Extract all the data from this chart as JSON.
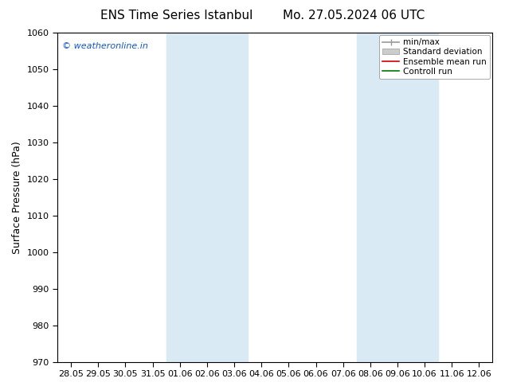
{
  "title_left": "ENS Time Series Istanbul",
  "title_right": "Mo. 27.05.2024 06 UTC",
  "ylabel": "Surface Pressure (hPa)",
  "ylim": [
    970,
    1060
  ],
  "yticks": [
    970,
    980,
    990,
    1000,
    1010,
    1020,
    1030,
    1040,
    1050,
    1060
  ],
  "x_labels": [
    "28.05",
    "29.05",
    "30.05",
    "31.05",
    "01.06",
    "02.06",
    "03.06",
    "04.06",
    "05.06",
    "06.06",
    "07.06",
    "08.06",
    "09.06",
    "10.06",
    "11.06",
    "12.06"
  ],
  "shaded_regions": [
    {
      "x_start": "01.06",
      "x_end": "03.06"
    },
    {
      "x_start": "08.06",
      "x_end": "10.06"
    }
  ],
  "shade_color": "#daeaf5",
  "legend_items": [
    {
      "label": "min/max",
      "color": "#999999",
      "linestyle": "-",
      "linewidth": 1.2
    },
    {
      "label": "Standard deviation",
      "color": "#bbbbbb",
      "linestyle": "-",
      "linewidth": 7
    },
    {
      "label": "Ensemble mean run",
      "color": "#cc0000",
      "linestyle": "-",
      "linewidth": 1.2
    },
    {
      "label": "Controll run",
      "color": "#007700",
      "linestyle": "-",
      "linewidth": 1.2
    }
  ],
  "watermark": "© weatheronline.in",
  "watermark_color": "#1155cc",
  "background_color": "#ffffff",
  "title_fontsize": 11,
  "ylabel_fontsize": 9,
  "tick_fontsize": 8,
  "legend_fontsize": 7.5,
  "watermark_fontsize": 8
}
